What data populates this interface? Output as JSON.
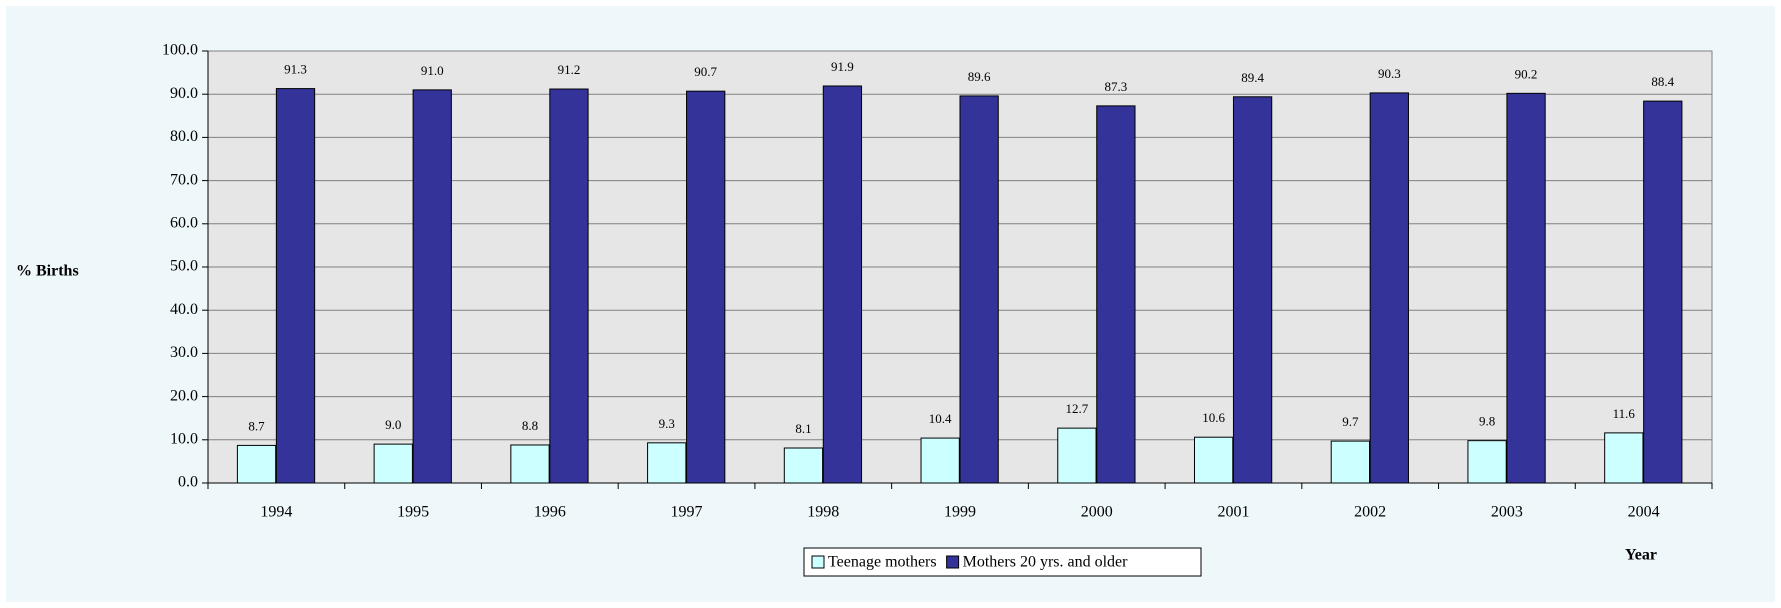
{
  "chart_data": {
    "type": "bar",
    "y_label": "% Births",
    "x_label": "Year",
    "categories": [
      "1994",
      "1995",
      "1996",
      "1997",
      "1998",
      "1999",
      "2000",
      "2001",
      "2002",
      "2003",
      "2004"
    ],
    "series": [
      {
        "name": "Teenage mothers",
        "color": "#ccffff",
        "values": [
          8.7,
          9.0,
          8.8,
          9.3,
          8.1,
          10.4,
          12.7,
          10.6,
          9.7,
          9.8,
          11.6
        ],
        "value_labels": [
          "8.7",
          "9.0",
          "8.8",
          "9.3",
          "8.1",
          "10.4",
          "12.7",
          "10.6",
          "9.7",
          "9.8",
          "11.6"
        ]
      },
      {
        "name": "Mothers 20 yrs. and older",
        "color": "#333399",
        "values": [
          91.3,
          91.0,
          91.2,
          90.7,
          91.9,
          89.6,
          87.3,
          89.4,
          90.3,
          90.2,
          88.4
        ],
        "value_labels": [
          "91.3",
          "91.0",
          "91.2",
          "90.7",
          "91.9",
          "89.6",
          "87.3",
          "89.4",
          "90.3",
          "90.2",
          "88.4"
        ]
      }
    ],
    "ylim": [
      0,
      100
    ],
    "yticks": [
      {
        "value": 0,
        "label": "0.0"
      },
      {
        "value": 10,
        "label": "10.0"
      },
      {
        "value": 20,
        "label": "20.0"
      },
      {
        "value": 30,
        "label": "30.0"
      },
      {
        "value": 40,
        "label": "40.0"
      },
      {
        "value": 50,
        "label": "50.0"
      },
      {
        "value": 60,
        "label": "60.0"
      },
      {
        "value": 70,
        "label": "70.0"
      },
      {
        "value": 80,
        "label": "80.0"
      },
      {
        "value": 90,
        "label": "90.0"
      },
      {
        "value": 100,
        "label": "100.0"
      }
    ],
    "grid": true,
    "legend": "bottom"
  }
}
